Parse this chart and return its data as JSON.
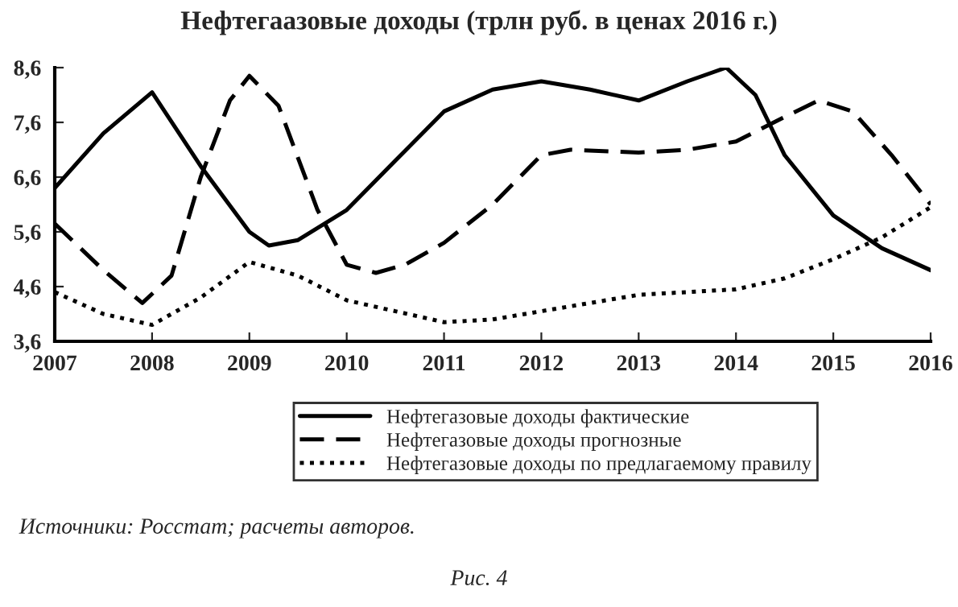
{
  "chart_data": {
    "type": "line",
    "title": "Нефтегаазовые доходы (трлн руб. в ценах 2016 г.)",
    "xlim": [
      2007,
      2016
    ],
    "xticks": [
      2007,
      2008,
      2009,
      2010,
      2011,
      2012,
      2013,
      2014,
      2015,
      2016
    ],
    "ylim": [
      3.6,
      8.6
    ],
    "yticks": [
      {
        "value": 3.6,
        "label": "3,6"
      },
      {
        "value": 4.6,
        "label": "4,6"
      },
      {
        "value": 5.6,
        "label": "5,6"
      },
      {
        "value": 6.6,
        "label": "6,6"
      },
      {
        "value": 7.6,
        "label": "7,6"
      },
      {
        "value": 8.6,
        "label": "8,6"
      }
    ],
    "grid": false,
    "legend": "bottom",
    "marker": "none",
    "series": [
      {
        "name": "Нефтегазовые доходы фактические",
        "color": "#000000",
        "line_style": "solid",
        "x": [
          2007,
          2007.5,
          2008,
          2008.5,
          2009,
          2009.2,
          2009.5,
          2010,
          2010.5,
          2011,
          2011.5,
          2012,
          2012.5,
          2013,
          2013.5,
          2013.9,
          2014.2,
          2014.5,
          2015,
          2015.5,
          2016
        ],
        "values": [
          6.4,
          7.4,
          8.15,
          6.8,
          5.6,
          5.35,
          5.45,
          6.0,
          6.9,
          7.8,
          8.2,
          8.35,
          8.2,
          8.0,
          8.35,
          8.6,
          8.1,
          7.0,
          5.9,
          5.3,
          4.9
        ]
      },
      {
        "name": "Нефтегазовые доходы прогнозные",
        "color": "#000000",
        "line_style": "dashed",
        "x": [
          2007,
          2007.5,
          2007.9,
          2008.2,
          2008.5,
          2008.8,
          2009,
          2009.3,
          2009.7,
          2010,
          2010.3,
          2010.6,
          2011,
          2011.5,
          2012,
          2012.3,
          2013,
          2013.5,
          2014,
          2014.5,
          2014.85,
          2015.2,
          2015.6,
          2016
        ],
        "values": [
          5.75,
          4.9,
          4.3,
          4.8,
          6.6,
          8.0,
          8.45,
          7.9,
          6.0,
          5.0,
          4.85,
          5.0,
          5.4,
          6.1,
          7.0,
          7.1,
          7.05,
          7.1,
          7.25,
          7.7,
          8.0,
          7.8,
          7.0,
          6.1
        ]
      },
      {
        "name": "Нефтегазовые доходы по предлагаемому правилу",
        "color": "#000000",
        "line_style": "dotted",
        "x": [
          2007,
          2007.5,
          2008,
          2008.5,
          2009,
          2009.5,
          2010,
          2010.5,
          2011,
          2011.5,
          2012,
          2013,
          2014,
          2014.5,
          2015,
          2015.5,
          2016
        ],
        "values": [
          4.5,
          4.1,
          3.9,
          4.4,
          5.05,
          4.8,
          4.35,
          4.15,
          3.95,
          4.0,
          4.15,
          4.45,
          4.55,
          4.75,
          5.1,
          5.5,
          6.05
        ]
      }
    ],
    "annotations": [
      "Источники: Росстат; расчеты авторов.",
      "Рис. 4"
    ]
  }
}
